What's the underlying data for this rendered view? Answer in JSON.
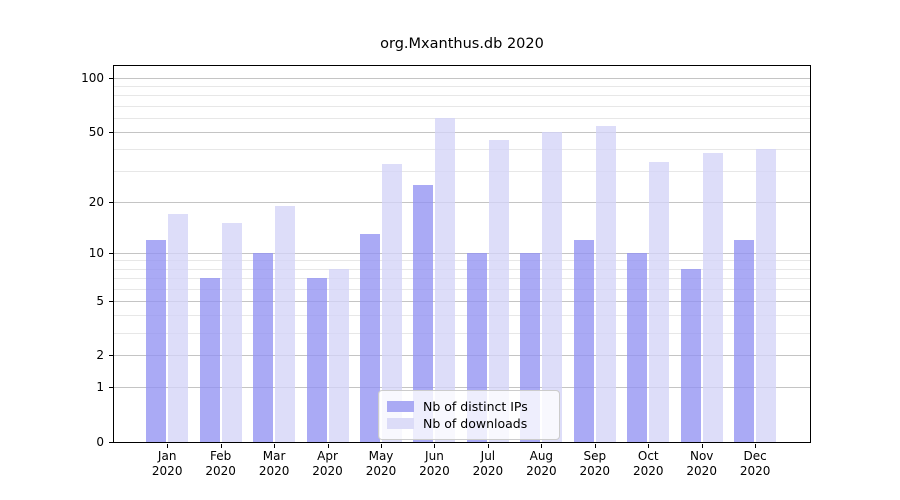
{
  "title": "org.Mxanthus.db 2020",
  "legend": {
    "items": [
      {
        "label": "Nb of distinct IPs",
        "series_key": "ips"
      },
      {
        "label": "Nb of downloads",
        "series_key": "downloads"
      }
    ],
    "position": "lower center"
  },
  "y_axis": {
    "tick_labels": [
      "100",
      "50",
      "20",
      "10",
      "5",
      "2",
      "1",
      "0"
    ],
    "major_ticks": [
      0,
      1,
      2,
      5,
      10,
      20,
      50,
      100
    ],
    "minor_gridlines": [
      3,
      4,
      6,
      7,
      8,
      9,
      30,
      40,
      60,
      70,
      80,
      90
    ],
    "scale": "log10(1+y)"
  },
  "x_axis": {
    "year": "2020"
  },
  "colors": {
    "bar_ips": "rgba(146,146,242,0.78)",
    "bar_downloads": "rgba(211,211,247,0.78)",
    "legend_ips": "#aaaaf4",
    "legend_downloads": "#dcdcf8",
    "grid_major": "#c4c4c4",
    "grid_minor": "#e7e7e7",
    "spine": "#000000",
    "text": "#000000"
  },
  "chart_data": {
    "type": "bar",
    "title": "org.Mxanthus.db 2020",
    "categories": [
      "Jan",
      "Feb",
      "Mar",
      "Apr",
      "May",
      "Jun",
      "Jul",
      "Aug",
      "Sep",
      "Oct",
      "Nov",
      "Dec"
    ],
    "year": "2020",
    "series": [
      {
        "name": "Nb of distinct IPs",
        "values": [
          12,
          7,
          10,
          7,
          13,
          25,
          10,
          10,
          12,
          10,
          8,
          12
        ]
      },
      {
        "name": "Nb of downloads",
        "values": [
          17,
          15,
          19,
          8,
          33,
          60,
          45,
          50,
          54,
          34,
          38,
          40
        ]
      }
    ],
    "xlabel": "",
    "ylabel": "",
    "yscale": "log1p",
    "y_ticks": [
      0,
      1,
      2,
      5,
      10,
      20,
      50,
      100
    ],
    "ylim": [
      0,
      120
    ],
    "grid": true,
    "legend_position": "lower center"
  }
}
